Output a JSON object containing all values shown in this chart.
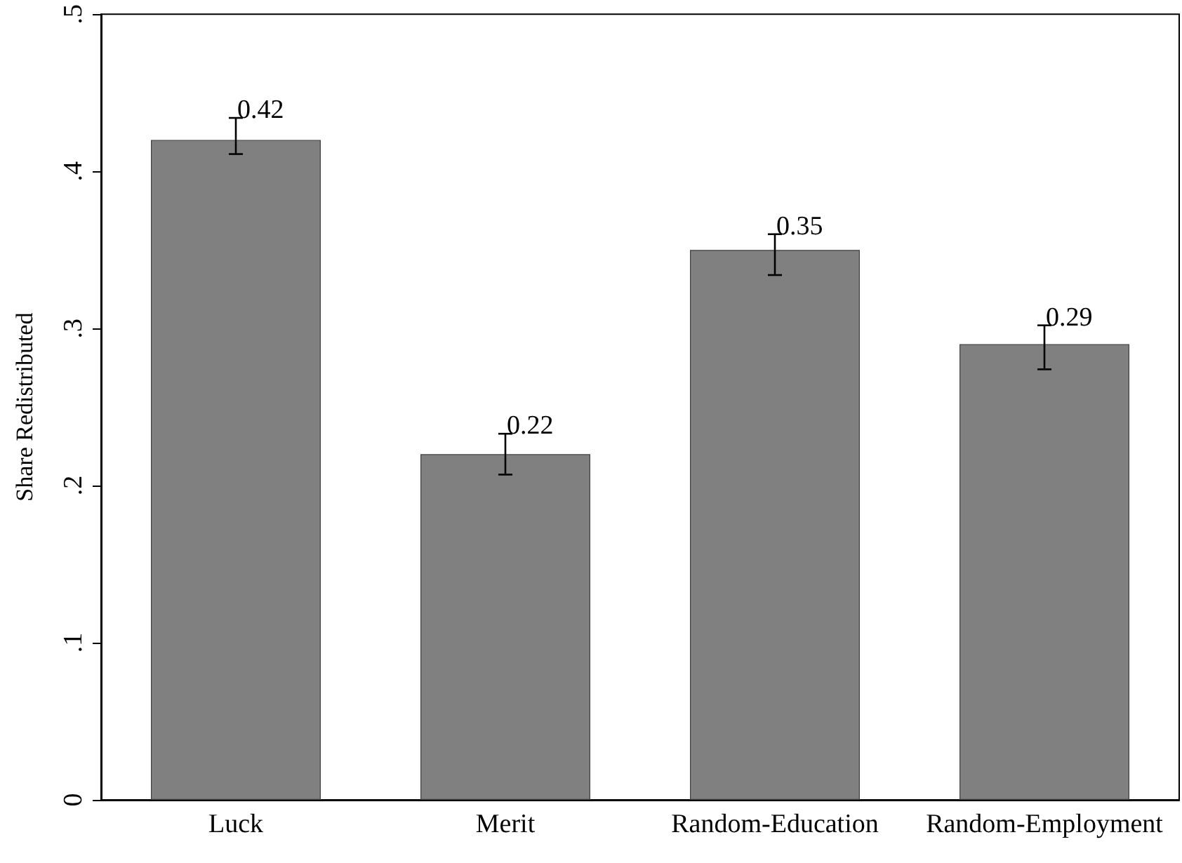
{
  "chart_data": {
    "type": "bar",
    "ylabel": "Share Redistributed",
    "categories": [
      "Luck",
      "Merit",
      "Random-Education",
      "Random-Employment"
    ],
    "values": [
      0.42,
      0.22,
      0.35,
      0.29
    ],
    "errors": [
      [
        0.411,
        0.434
      ],
      [
        0.207,
        0.233
      ],
      [
        0.334,
        0.36
      ],
      [
        0.274,
        0.302
      ]
    ],
    "color": "#808080",
    "data_labels": true,
    "ylim": [
      0,
      0.5
    ],
    "yticks": [
      {
        "value": 0,
        "label": "0"
      },
      {
        "value": 0.1,
        "label": ".1"
      },
      {
        "value": 0.2,
        "label": ".2"
      },
      {
        "value": 0.3,
        "label": ".3"
      },
      {
        "value": 0.4,
        "label": ".4"
      },
      {
        "value": 0.5,
        "label": ".5"
      }
    ],
    "grid": false
  }
}
